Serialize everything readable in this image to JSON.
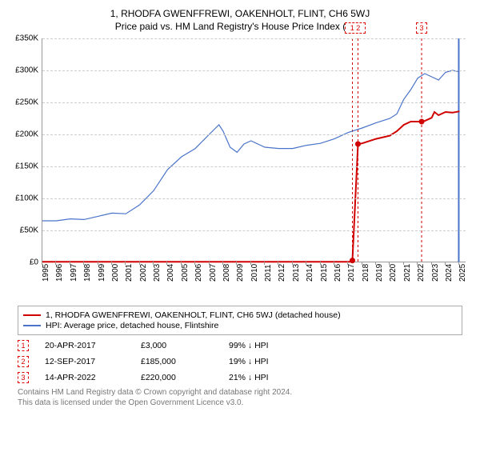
{
  "title_line1": "1, RHODFA GWENFFREWI, OAKENHOLT, FLINT, CH6 5WJ",
  "title_line2": "Price paid vs. HM Land Registry's House Price Index (HPI)",
  "chart": {
    "type": "line",
    "background_color": "#ffffff",
    "grid_color": "#cccccc",
    "axis_color": "#999999",
    "x_min": 1995,
    "x_max": 2025.5,
    "y_min": 0,
    "y_max": 350000,
    "y_ticks": [
      {
        "v": 0,
        "label": "£0"
      },
      {
        "v": 50000,
        "label": "£50K"
      },
      {
        "v": 100000,
        "label": "£100K"
      },
      {
        "v": 150000,
        "label": "£150K"
      },
      {
        "v": 200000,
        "label": "£200K"
      },
      {
        "v": 250000,
        "label": "£250K"
      },
      {
        "v": 300000,
        "label": "£300K"
      },
      {
        "v": 350000,
        "label": "£350K"
      }
    ],
    "x_ticks": [
      1995,
      1996,
      1997,
      1998,
      1999,
      2000,
      2001,
      2002,
      2003,
      2004,
      2005,
      2006,
      2007,
      2008,
      2009,
      2010,
      2011,
      2012,
      2013,
      2014,
      2015,
      2016,
      2017,
      2018,
      2019,
      2020,
      2021,
      2022,
      2023,
      2024,
      2025
    ],
    "vlines": [
      {
        "x": 2017.3,
        "color": "#d00000",
        "dash": true
      },
      {
        "x": 2017.7,
        "color": "#d00000",
        "dash": true
      },
      {
        "x": 2022.28,
        "color": "#d00000",
        "dash": true
      },
      {
        "x": 2024.95,
        "color": "#4a74c9",
        "dash": false,
        "width": 2
      }
    ],
    "markers_top": [
      {
        "x_start": 2017.3,
        "x_end": 2017.7,
        "label": "1 2"
      },
      {
        "x_start": 2022.28,
        "x_end": 2022.28,
        "label": "3"
      }
    ],
    "series": [
      {
        "name": "price_paid",
        "color": "#d00000",
        "width": 2,
        "points": [
          [
            1995,
            1000
          ],
          [
            2017.29,
            1000
          ],
          [
            2017.3,
            3000
          ],
          [
            2017.7,
            185000
          ],
          [
            2018,
            186000
          ],
          [
            2019,
            193000
          ],
          [
            2020,
            198000
          ],
          [
            2020.5,
            205000
          ],
          [
            2021,
            215000
          ],
          [
            2021.5,
            220000
          ],
          [
            2022.28,
            220000
          ],
          [
            2022.5,
            221000
          ],
          [
            2023,
            226000
          ],
          [
            2023.2,
            235000
          ],
          [
            2023.5,
            230000
          ],
          [
            2024,
            235000
          ],
          [
            2024.5,
            234000
          ],
          [
            2025,
            236000
          ]
        ],
        "dots": [
          [
            2017.3,
            3000
          ],
          [
            2017.7,
            185000
          ],
          [
            2022.28,
            220000
          ]
        ]
      },
      {
        "name": "hpi",
        "color": "#4a74c9",
        "width": 1.2,
        "points": [
          [
            1995,
            65000
          ],
          [
            1996,
            65000
          ],
          [
            1997,
            68000
          ],
          [
            1998,
            67000
          ],
          [
            1999,
            72000
          ],
          [
            2000,
            77000
          ],
          [
            2001,
            76000
          ],
          [
            2002,
            90000
          ],
          [
            2003,
            112000
          ],
          [
            2004,
            145000
          ],
          [
            2005,
            165000
          ],
          [
            2006,
            178000
          ],
          [
            2007,
            200000
          ],
          [
            2007.7,
            215000
          ],
          [
            2008,
            205000
          ],
          [
            2008.5,
            180000
          ],
          [
            2009,
            172000
          ],
          [
            2009.5,
            185000
          ],
          [
            2010,
            190000
          ],
          [
            2011,
            180000
          ],
          [
            2012,
            178000
          ],
          [
            2013,
            178000
          ],
          [
            2014,
            183000
          ],
          [
            2015,
            186000
          ],
          [
            2016,
            193000
          ],
          [
            2017,
            203000
          ],
          [
            2018,
            210000
          ],
          [
            2019,
            218000
          ],
          [
            2020,
            225000
          ],
          [
            2020.5,
            232000
          ],
          [
            2021,
            255000
          ],
          [
            2021.5,
            270000
          ],
          [
            2022,
            288000
          ],
          [
            2022.5,
            295000
          ],
          [
            2023,
            290000
          ],
          [
            2023.5,
            285000
          ],
          [
            2024,
            297000
          ],
          [
            2024.5,
            300000
          ],
          [
            2025,
            298000
          ]
        ]
      }
    ]
  },
  "legend": {
    "items": [
      {
        "color": "#d00000",
        "label": "1, RHODFA GWENFFREWI, OAKENHOLT, FLINT, CH6 5WJ (detached house)"
      },
      {
        "color": "#4a74c9",
        "label": "HPI: Average price, detached house, Flintshire"
      }
    ]
  },
  "annotations": [
    {
      "n": "1",
      "date": "20-APR-2017",
      "price": "£3,000",
      "diff": "99% ↓ HPI"
    },
    {
      "n": "2",
      "date": "12-SEP-2017",
      "price": "£185,000",
      "diff": "19% ↓ HPI"
    },
    {
      "n": "3",
      "date": "14-APR-2022",
      "price": "£220,000",
      "diff": "21% ↓ HPI"
    }
  ],
  "footnote1": "Contains HM Land Registry data © Crown copyright and database right 2024.",
  "footnote2": "This data is licensed under the Open Government Licence v3.0."
}
